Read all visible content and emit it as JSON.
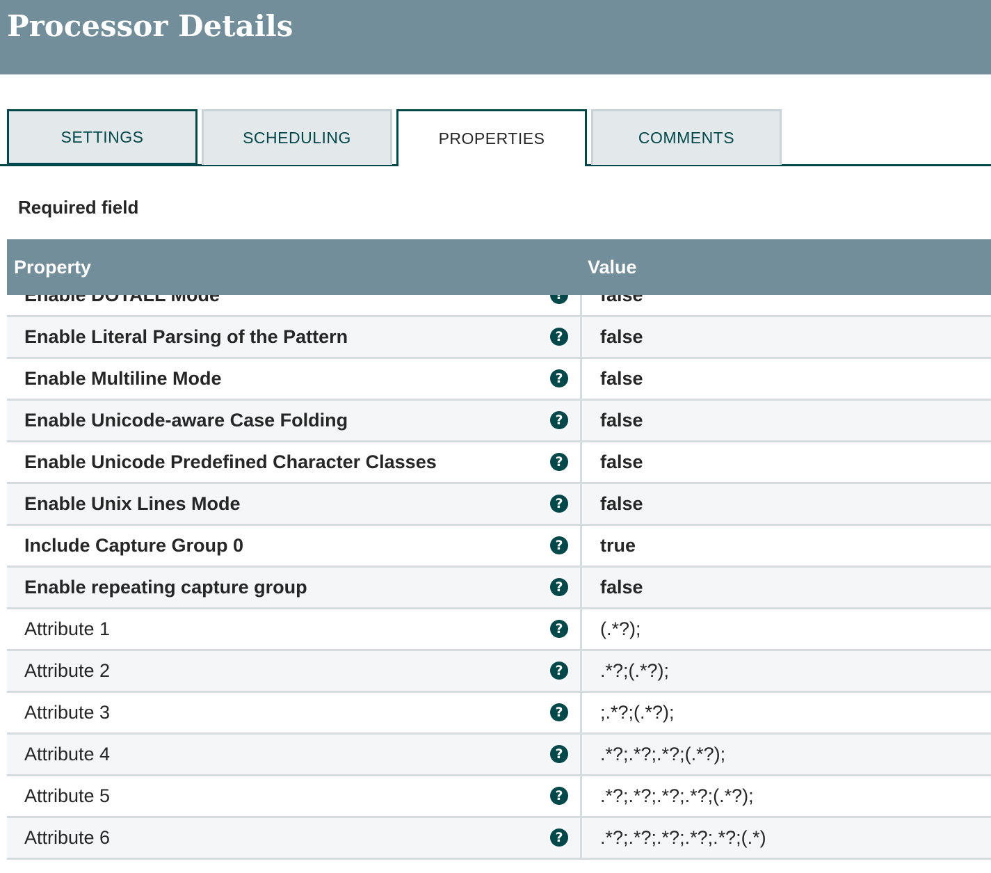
{
  "header": {
    "title": "Processor Details"
  },
  "tabs": [
    {
      "label": "SETTINGS"
    },
    {
      "label": "SCHEDULING"
    },
    {
      "label": "PROPERTIES"
    },
    {
      "label": "COMMENTS"
    }
  ],
  "required_label": "Required field",
  "table": {
    "columns": {
      "property": "Property",
      "value": "Value"
    },
    "rows": [
      {
        "name": "Enable DOTALL Mode",
        "value": "false",
        "required": true
      },
      {
        "name": "Enable Literal Parsing of the Pattern",
        "value": "false",
        "required": true
      },
      {
        "name": "Enable Multiline Mode",
        "value": "false",
        "required": true
      },
      {
        "name": "Enable Unicode-aware Case Folding",
        "value": "false",
        "required": true
      },
      {
        "name": "Enable Unicode Predefined Character Classes",
        "value": "false",
        "required": true
      },
      {
        "name": "Enable Unix Lines Mode",
        "value": "false",
        "required": true
      },
      {
        "name": "Include Capture Group 0",
        "value": "true",
        "required": true
      },
      {
        "name": "Enable repeating capture group",
        "value": "false",
        "required": true
      },
      {
        "name": "Attribute 1",
        "value": "(.*?);",
        "required": false
      },
      {
        "name": "Attribute 2",
        "value": ".*?;(.*?);",
        "required": false
      },
      {
        "name": "Attribute 3",
        "value": ";.*?;(.*?);",
        "required": false
      },
      {
        "name": "Attribute 4",
        "value": ".*?;.*?;.*?;(.*?);",
        "required": false
      },
      {
        "name": "Attribute 5",
        "value": ".*?;.*?;.*?;.*?;(.*?);",
        "required": false
      },
      {
        "name": "Attribute 6",
        "value": ".*?;.*?;.*?;.*?;.*?;(.*)",
        "required": false
      }
    ]
  },
  "icons": {
    "help": "question-circle-icon",
    "help_glyph": "?"
  },
  "colors": {
    "header_bg": "#728e9b",
    "accent": "#004849",
    "tab_inactive_bg": "#e3e8eb"
  }
}
